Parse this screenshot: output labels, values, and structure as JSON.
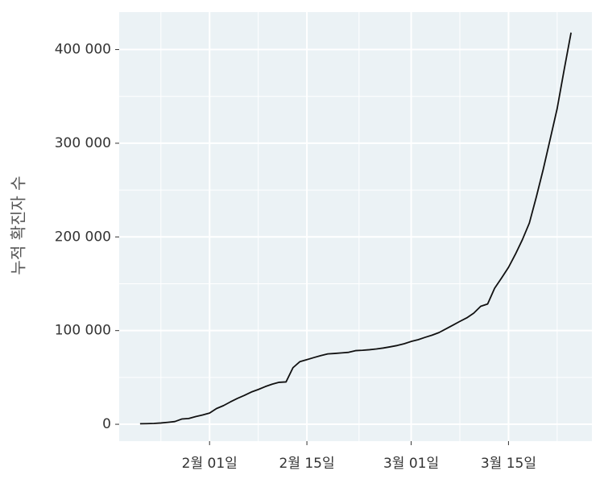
{
  "chart_data": {
    "type": "line",
    "y_label": "누적 확진자 수",
    "x": [
      "01-22",
      "01-23",
      "01-24",
      "01-25",
      "01-26",
      "01-27",
      "01-28",
      "01-29",
      "01-30",
      "01-31",
      "02-01",
      "02-02",
      "02-03",
      "02-04",
      "02-05",
      "02-06",
      "02-07",
      "02-08",
      "02-09",
      "02-10",
      "02-11",
      "02-12",
      "02-13",
      "02-14",
      "02-15",
      "02-16",
      "02-17",
      "02-18",
      "02-19",
      "02-20",
      "02-21",
      "02-22",
      "02-23",
      "02-24",
      "02-25",
      "02-26",
      "02-27",
      "02-28",
      "02-29",
      "03-01",
      "03-02",
      "03-03",
      "03-04",
      "03-05",
      "03-06",
      "03-07",
      "03-08",
      "03-09",
      "03-10",
      "03-11",
      "03-12",
      "03-13",
      "03-14",
      "03-15",
      "03-16",
      "03-17",
      "03-18",
      "03-19",
      "03-20",
      "03-21",
      "03-22",
      "03-23",
      "03-24"
    ],
    "series": [
      {
        "name": "누적 확진자 수",
        "color": "#111111",
        "values": [
          600,
          700,
          900,
          1400,
          2100,
          2900,
          5600,
          6200,
          8200,
          9900,
          12000,
          16800,
          19900,
          23900,
          27600,
          30800,
          34400,
          37100,
          40200,
          42800,
          44800,
          45200,
          60400,
          66900,
          69000,
          71200,
          73300,
          75100,
          75600,
          76200,
          76800,
          78600,
          79000,
          79600,
          80400,
          81400,
          82700,
          84100,
          86000,
          88400,
          90300,
          92800,
          95100,
          97900,
          101800,
          105800,
          109800,
          113600,
          118600,
          125900,
          128400,
          145200,
          156100,
          167500,
          181600,
          197100,
          214800,
          242600,
          272200,
          304500,
          337000,
          378200,
          418000
        ]
      }
    ],
    "xlim": [
      "01-19",
      "03-27"
    ],
    "xticks": [
      {
        "value": "02-01",
        "label": "2월 01일"
      },
      {
        "value": "02-15",
        "label": "2월 15일"
      },
      {
        "value": "03-01",
        "label": "3월 01일"
      },
      {
        "value": "03-15",
        "label": "3월 15일"
      }
    ],
    "ylim": [
      -18000,
      440000
    ],
    "yticks": [
      {
        "value": 0,
        "label": "0"
      },
      {
        "value": 100000,
        "label": "100 000"
      },
      {
        "value": 200000,
        "label": "200 000"
      },
      {
        "value": 300000,
        "label": "300 000"
      },
      {
        "value": 400000,
        "label": "400 000"
      }
    ],
    "grid": true,
    "minor_grid": true
  }
}
